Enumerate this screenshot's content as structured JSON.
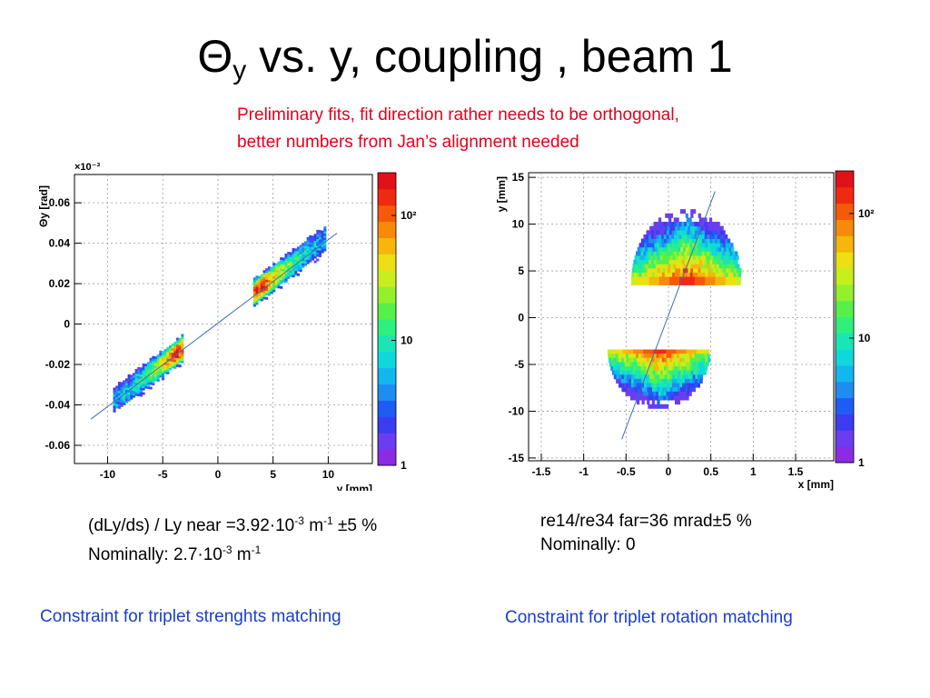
{
  "slide": {
    "title_main": "Θ",
    "title_sub": "y",
    "title_rest": " vs. y, coupling , beam 1",
    "note_line1": "Preliminary fits, fit direction rather needs to be orthogonal,",
    "note_line2": "better numbers from Jan’s alignment needed",
    "left_caption": {
      "line1_a": "(dLy/ds) / Ly near =3.92·10",
      "line1_sup1": "-3",
      "line1_b": " m",
      "line1_sup2": "-1",
      "line1_c": " ±5 %",
      "line2_a": "Nominally: 2.7·10",
      "line2_sup1": "-3",
      "line2_b": " m",
      "line2_sup2": "-1"
    },
    "right_caption": {
      "line1": "re14/re34 far=36 mrad±5 %",
      "line2": "Nominally: 0"
    },
    "left_constraint": "Constraint for triplet strenghts matching",
    "right_constraint": "Constraint for triplet rotation matching"
  },
  "colors": {
    "note": "#e3001b",
    "constraint": "#1a3ec8",
    "fit_line": "#3f6fb5",
    "palette": [
      "#8b2be2",
      "#6a3df0",
      "#3c3cf2",
      "#1f5cf5",
      "#1d8df2",
      "#12b7ee",
      "#0fd8dc",
      "#19e6b4",
      "#2ef07d",
      "#57f04a",
      "#94f02c",
      "#c8ee1c",
      "#ecdf12",
      "#f7b60c",
      "#f78a0a",
      "#f45a0a",
      "#ef2a12",
      "#e01218"
    ]
  },
  "chart_data": [
    {
      "type": "heatmap",
      "xlabel": "y [mm]",
      "ylabel": "Θy [rad]",
      "y_multiplier": "×10⁻³",
      "xlim": [
        -13,
        14
      ],
      "ylim": [
        -0.069,
        0.074
      ],
      "x_ticks": [
        -10,
        -5,
        0,
        5,
        10
      ],
      "x_tick_labels": [
        "-10",
        "-5",
        "0",
        "5",
        "10"
      ],
      "y_ticks": [
        -0.06,
        -0.04,
        -0.02,
        0,
        0.02,
        0.04,
        0.06
      ],
      "y_tick_labels": [
        "-0.06",
        "-0.04",
        "-0.02",
        "0",
        "0.02",
        "0.04",
        "0.06"
      ],
      "grid": true,
      "color_scale": "log",
      "colorbar_labels": [
        "1",
        "10",
        "10²"
      ],
      "colorbar_values": [
        1,
        10,
        100
      ],
      "fit_line": {
        "x": [
          -11.5,
          10.8
        ],
        "y": [
          -0.047,
          0.045
        ]
      },
      "clusters": [
        {
          "x_range": [
            -9.5,
            -3.2
          ],
          "y_center": [
            -0.039,
            -0.01
          ],
          "peak_x": -3.8
        },
        {
          "x_range": [
            3.2,
            9.8
          ],
          "y_center": [
            0.013,
            0.04
          ],
          "peak_x": 3.8
        }
      ]
    },
    {
      "type": "heatmap",
      "xlabel": "x [mm]",
      "ylabel": "y [mm]",
      "xlim": [
        -1.65,
        1.95
      ],
      "ylim": [
        -15.3,
        15.5
      ],
      "x_ticks": [
        -1.5,
        -1,
        -0.5,
        0,
        0.5,
        1,
        1.5
      ],
      "x_tick_labels": [
        "-1.5",
        "-1",
        "-0.5",
        "0",
        "0.5",
        "1",
        "1.5"
      ],
      "y_ticks": [
        -15,
        -10,
        -5,
        0,
        5,
        10,
        15
      ],
      "y_tick_labels": [
        "-15",
        "-10",
        "-5",
        "0",
        "5",
        "10",
        "15"
      ],
      "grid": true,
      "color_scale": "log",
      "colorbar_labels": [
        "1",
        "10",
        "10²"
      ],
      "colorbar_values": [
        1,
        10,
        100
      ],
      "fit_line": {
        "x": [
          -0.55,
          0.55
        ],
        "y": [
          -13,
          13.5
        ]
      },
      "clusters": [
        {
          "shape": "upper-dome",
          "x_range": [
            -0.4,
            0.85
          ],
          "y_range": [
            3.5,
            11
          ],
          "peak_y": 4
        },
        {
          "shape": "lower-dome",
          "x_range": [
            -0.7,
            0.45
          ],
          "y_range": [
            -9.5,
            -3.5
          ],
          "peak_y": -3.6
        }
      ]
    }
  ]
}
